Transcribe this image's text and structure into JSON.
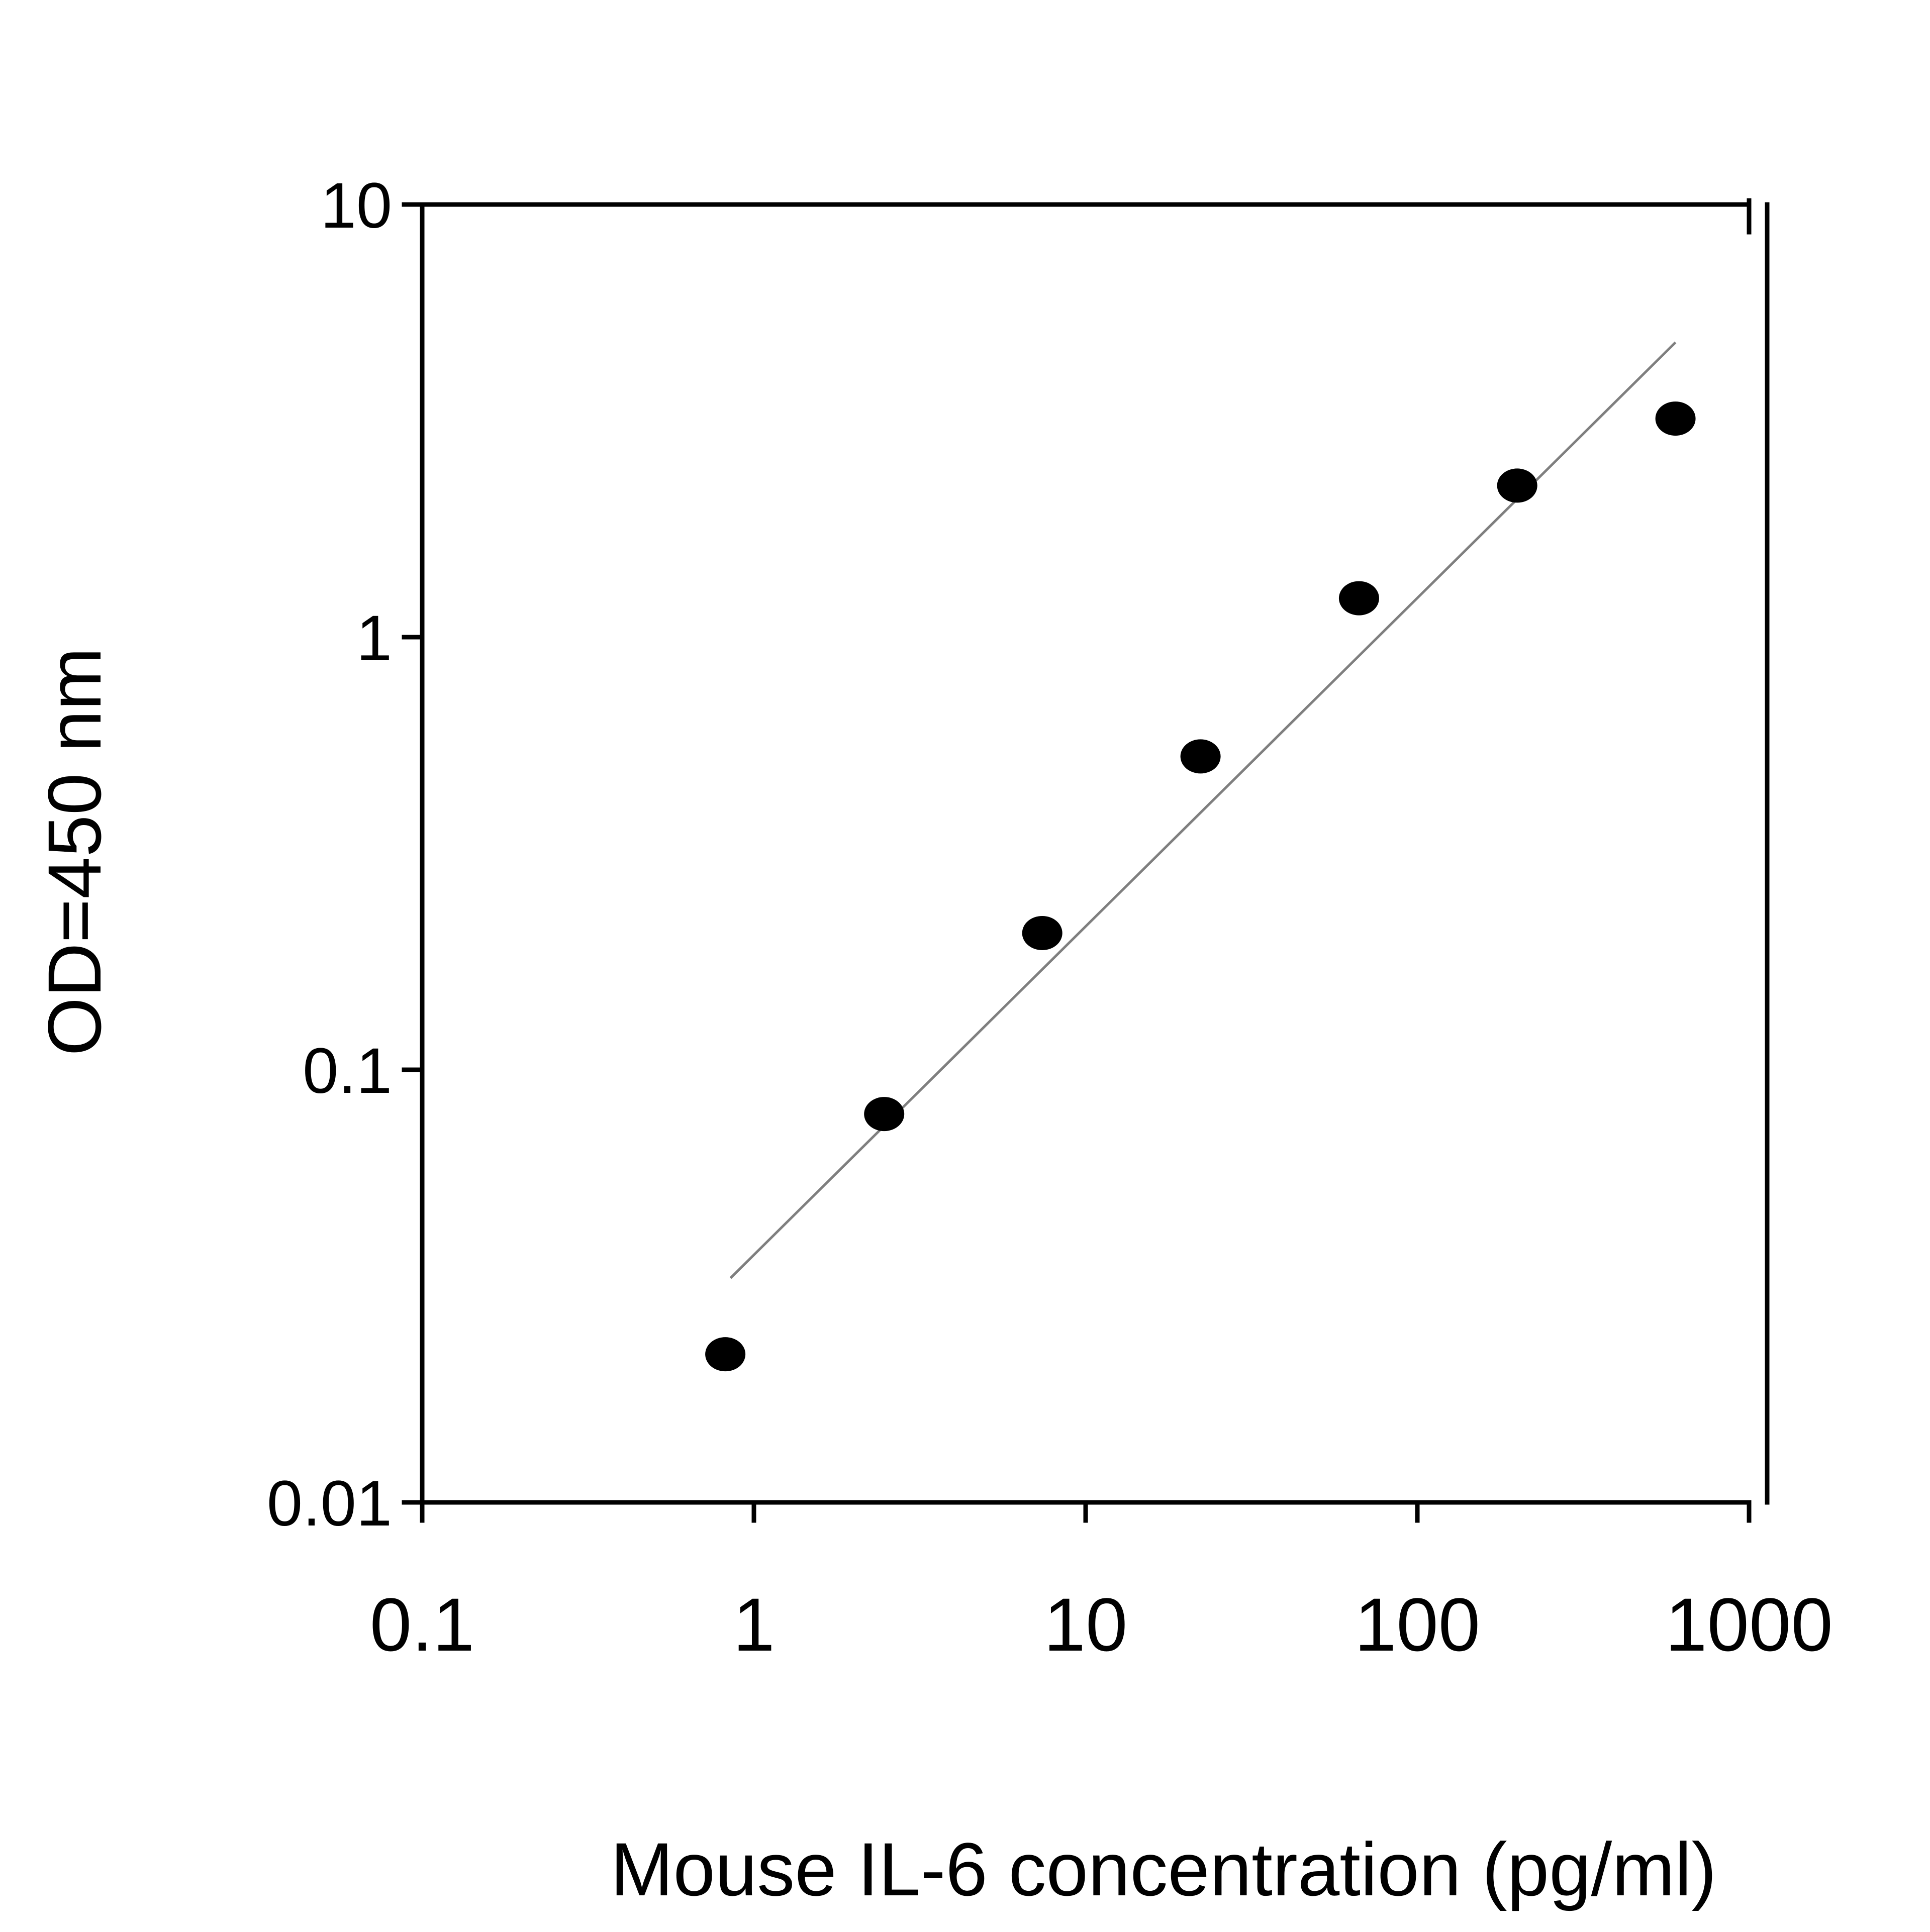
{
  "chart_data": {
    "type": "scatter",
    "title": "",
    "xlabel": "Mouse IL-6 concentration (pg/ml)",
    "ylabel": "OD=450 nm",
    "x_scale": "log",
    "y_scale": "log",
    "xlim": [
      0.1,
      1000
    ],
    "ylim": [
      0.01,
      10
    ],
    "x_ticks": [
      {
        "value": 0.1,
        "label": "0.1"
      },
      {
        "value": 1,
        "label": "1"
      },
      {
        "value": 10,
        "label": "10"
      },
      {
        "value": 100,
        "label": "100"
      },
      {
        "value": 1000,
        "label": "1000"
      }
    ],
    "y_ticks": [
      {
        "value": 0.01,
        "label": "0.01"
      },
      {
        "value": 0.1,
        "label": "0.1"
      },
      {
        "value": 1,
        "label": "1"
      },
      {
        "value": 10,
        "label": "10"
      }
    ],
    "grid": false,
    "legend": "none",
    "series": [
      {
        "marker": "filled-circle",
        "color": "#000000",
        "points": [
          {
            "x": 0.82,
            "y": 0.022
          },
          {
            "x": 2.47,
            "y": 0.079
          },
          {
            "x": 7.4,
            "y": 0.207
          },
          {
            "x": 22.2,
            "y": 0.53
          },
          {
            "x": 66.7,
            "y": 1.23
          },
          {
            "x": 200,
            "y": 2.24
          },
          {
            "x": 600,
            "y": 3.2
          }
        ]
      }
    ],
    "trendline": {
      "type": "power-fit",
      "color": "#7f7f7f",
      "x_start": 0.85,
      "y_start": 0.033,
      "x_end": 600,
      "y_end": 4.8
    }
  }
}
